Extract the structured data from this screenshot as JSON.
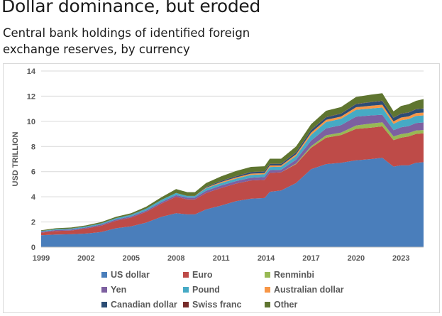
{
  "header": {
    "title": "Dollar dominance, but eroded",
    "subtitle": "Central bank holdings of identified foreign exchange reserves, by currency"
  },
  "chart_data": {
    "type": "area",
    "stacked": true,
    "title": "Dollar dominance, but eroded",
    "subtitle": "Central bank holdings of identified foreign exchange reserves, by currency",
    "xlabel": "",
    "ylabel": "USD TRILLION",
    "xlim": [
      1999,
      2024.5
    ],
    "ylim": [
      0,
      14
    ],
    "x_ticks": [
      "1999",
      "2002",
      "2005",
      "2008",
      "2011",
      "2014",
      "2017",
      "2020",
      "2023"
    ],
    "y_ticks": [
      "0",
      "2",
      "4",
      "6",
      "8",
      "10",
      "12",
      "14"
    ],
    "grid": true,
    "legend_position": "bottom",
    "x": [
      1999.0,
      2000.0,
      2001.0,
      2002.0,
      2003.0,
      2004.0,
      2005.0,
      2006.0,
      2007.0,
      2008.0,
      2008.75,
      2009.25,
      2010.0,
      2011.0,
      2012.0,
      2013.0,
      2013.9,
      2014.25,
      2015.0,
      2016.0,
      2017.0,
      2018.0,
      2019.0,
      2020.0,
      2021.0,
      2021.75,
      2022.5,
      2023.0,
      2023.5,
      2024.0,
      2024.5
    ],
    "series": [
      {
        "name": "US dollar",
        "color": "#4a7ebb",
        "values": [
          0.95,
          1.0,
          1.02,
          1.08,
          1.2,
          1.5,
          1.65,
          1.95,
          2.4,
          2.7,
          2.6,
          2.6,
          3.0,
          3.3,
          3.65,
          3.85,
          3.9,
          4.4,
          4.5,
          5.1,
          6.2,
          6.6,
          6.7,
          6.9,
          7.0,
          7.1,
          6.4,
          6.5,
          6.5,
          6.7,
          6.75
        ]
      },
      {
        "name": "Euro",
        "color": "#be4b48",
        "values": [
          0.2,
          0.28,
          0.3,
          0.4,
          0.5,
          0.6,
          0.7,
          0.85,
          1.05,
          1.3,
          1.2,
          1.2,
          1.3,
          1.4,
          1.4,
          1.45,
          1.45,
          1.5,
          1.45,
          1.5,
          1.7,
          2.1,
          2.2,
          2.5,
          2.5,
          2.5,
          2.1,
          2.2,
          2.3,
          2.3,
          2.3
        ]
      },
      {
        "name": "Renminbi",
        "color": "#98b954",
        "values": [
          0,
          0,
          0,
          0,
          0,
          0,
          0,
          0,
          0,
          0,
          0,
          0,
          0,
          0,
          0,
          0,
          0,
          0,
          0,
          0.05,
          0.12,
          0.19,
          0.2,
          0.27,
          0.32,
          0.32,
          0.3,
          0.28,
          0.27,
          0.27,
          0.26
        ]
      },
      {
        "name": "Yen",
        "color": "#7d60a0",
        "values": [
          0.08,
          0.08,
          0.08,
          0.08,
          0.09,
          0.1,
          0.1,
          0.11,
          0.12,
          0.14,
          0.14,
          0.14,
          0.18,
          0.2,
          0.2,
          0.22,
          0.22,
          0.22,
          0.2,
          0.3,
          0.45,
          0.55,
          0.6,
          0.7,
          0.65,
          0.6,
          0.5,
          0.55,
          0.55,
          0.6,
          0.6
        ]
      },
      {
        "name": "Pound",
        "color": "#46aac5",
        "values": [
          0.05,
          0.06,
          0.07,
          0.08,
          0.09,
          0.1,
          0.12,
          0.14,
          0.17,
          0.16,
          0.12,
          0.12,
          0.2,
          0.2,
          0.2,
          0.22,
          0.22,
          0.25,
          0.24,
          0.3,
          0.45,
          0.5,
          0.5,
          0.55,
          0.55,
          0.58,
          0.5,
          0.55,
          0.55,
          0.56,
          0.56
        ]
      },
      {
        "name": "Australian dollar",
        "color": "#f79646",
        "values": [
          0,
          0,
          0,
          0,
          0,
          0,
          0,
          0,
          0,
          0,
          0,
          0,
          0.05,
          0.08,
          0.09,
          0.1,
          0.1,
          0.12,
          0.1,
          0.13,
          0.18,
          0.18,
          0.18,
          0.2,
          0.22,
          0.22,
          0.2,
          0.22,
          0.22,
          0.23,
          0.23
        ]
      },
      {
        "name": "Canadian dollar",
        "color": "#2c4d75",
        "values": [
          0,
          0,
          0,
          0,
          0,
          0,
          0,
          0,
          0,
          0,
          0,
          0,
          0.05,
          0.08,
          0.09,
          0.12,
          0.12,
          0.12,
          0.12,
          0.15,
          0.2,
          0.2,
          0.23,
          0.25,
          0.28,
          0.3,
          0.28,
          0.3,
          0.3,
          0.3,
          0.3
        ]
      },
      {
        "name": "Swiss franc",
        "color": "#772c2a",
        "values": [
          0.01,
          0.01,
          0.01,
          0.01,
          0.01,
          0.01,
          0.01,
          0.01,
          0.01,
          0.01,
          0.01,
          0.01,
          0.01,
          0.01,
          0.02,
          0.02,
          0.02,
          0.02,
          0.02,
          0.02,
          0.02,
          0.02,
          0.02,
          0.02,
          0.02,
          0.02,
          0.02,
          0.02,
          0.02,
          0.02,
          0.02
        ]
      },
      {
        "name": "Other",
        "color": "#5f7530",
        "values": [
          0.05,
          0.07,
          0.08,
          0.08,
          0.1,
          0.1,
          0.12,
          0.15,
          0.2,
          0.3,
          0.3,
          0.3,
          0.3,
          0.35,
          0.4,
          0.4,
          0.4,
          0.4,
          0.4,
          0.45,
          0.45,
          0.5,
          0.5,
          0.55,
          0.58,
          0.6,
          0.5,
          0.6,
          0.65,
          0.65,
          0.75
        ]
      }
    ]
  }
}
